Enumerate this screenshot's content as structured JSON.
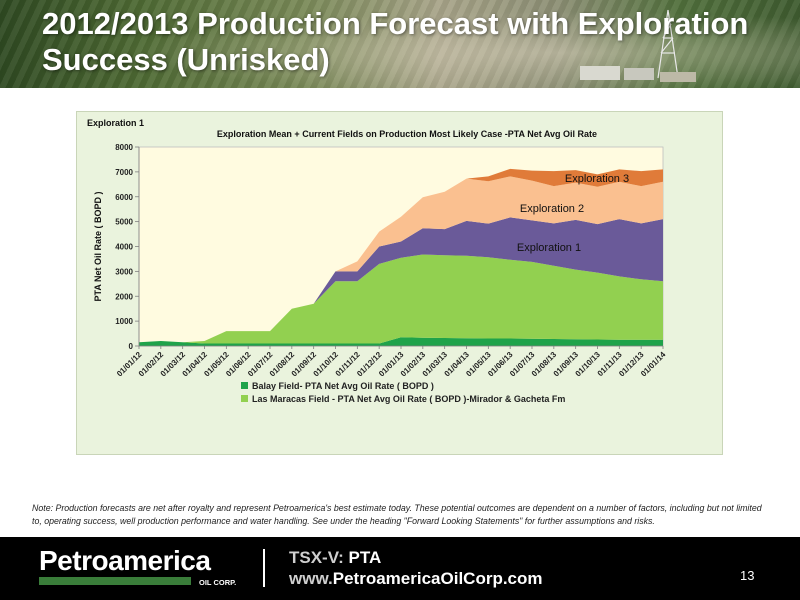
{
  "slide": {
    "title": "2012/2013 Production Forecast with Exploration Success (Unrisked)",
    "note": "Note: Production forecasts are net after royalty and represent Petroamerica's best estimate today. These potential outcomes are dependent on a number of factors, including but not limited to, operating success, well production performance and water handling. See under the heading \"Forward Looking Statements\" for further assumptions and risks.",
    "page_number": "13"
  },
  "footer": {
    "logo_name": "Petroamerica",
    "logo_sub": "OIL CORP.",
    "ticker_label": "TSX-V:",
    "ticker_symbol": "PTA",
    "website_prefix": "www.",
    "website_domain": "PetroamericaOilCorp.com"
  },
  "colors": {
    "balay": "#1fa34a",
    "las_maracas": "#92d050",
    "exploration_1": "#6a5a99",
    "exploration_2": "#fac090",
    "exploration_3": "#e07b39",
    "chart_background": "#fffbe0",
    "panel": "#eaf3dd"
  },
  "chart_data": {
    "type": "area",
    "corner_label": "Exploration 1",
    "title": "Exploration Mean + Current Fields on Production  Most Likely Case -PTA Net Avg Oil Rate",
    "xlabel": "",
    "ylabel": "PTA Net Oil Rate ( BOPD )",
    "ylim": [
      0,
      8000
    ],
    "yticks": [
      0,
      1000,
      2000,
      3000,
      4000,
      5000,
      6000,
      7000,
      8000
    ],
    "categories": [
      "01/01/12",
      "01/02/12",
      "01/03/12",
      "01/04/12",
      "01/05/12",
      "01/06/12",
      "01/07/12",
      "01/08/12",
      "01/09/12",
      "01/10/12",
      "01/11/12",
      "01/12/12",
      "01/01/13",
      "01/02/13",
      "01/03/13",
      "01/04/13",
      "01/05/13",
      "01/06/13",
      "01/07/13",
      "01/08/13",
      "01/09/13",
      "01/10/13",
      "01/11/13",
      "01/12/13",
      "01/01/14"
    ],
    "stacked": true,
    "grid": false,
    "legend_position": "bottom",
    "series": [
      {
        "name": "Balay Field- PTA Net Avg Oil Rate ( BOPD )",
        "values": [
          150,
          200,
          150,
          100,
          100,
          100,
          100,
          100,
          100,
          100,
          100,
          100,
          350,
          330,
          320,
          310,
          300,
          300,
          290,
          280,
          270,
          260,
          250,
          250,
          250
        ]
      },
      {
        "name": "Las Maracas Field - PTA Net Avg Oil Rate ( BOPD )-Mirador & Gacheta Fm",
        "values": [
          0,
          0,
          0,
          100,
          500,
          500,
          500,
          1400,
          1600,
          2500,
          2500,
          3200,
          3200,
          3350,
          3330,
          3320,
          3270,
          3170,
          3090,
          2950,
          2800,
          2690,
          2550,
          2430,
          2350
        ]
      },
      {
        "name": "Exploration 1",
        "values": [
          0,
          0,
          0,
          0,
          0,
          0,
          0,
          0,
          0,
          400,
          400,
          700,
          650,
          1050,
          1050,
          1400,
          1350,
          1700,
          1670,
          1700,
          2000,
          1950,
          2300,
          2250,
          2500
        ]
      },
      {
        "name": "Exploration 2",
        "values": [
          0,
          0,
          0,
          0,
          0,
          0,
          0,
          0,
          0,
          0,
          400,
          600,
          1000,
          1250,
          1500,
          1700,
          1700,
          1650,
          1600,
          1500,
          1500,
          1500,
          1500,
          1500,
          1500
        ]
      },
      {
        "name": "Exploration 3",
        "values": [
          0,
          0,
          0,
          0,
          0,
          0,
          0,
          0,
          0,
          0,
          0,
          0,
          0,
          0,
          0,
          0,
          200,
          300,
          400,
          600,
          500,
          500,
          500,
          600,
          500
        ]
      }
    ],
    "annotations": [
      "Exploration 3",
      "Exploration 2",
      "Exploration 1"
    ]
  }
}
